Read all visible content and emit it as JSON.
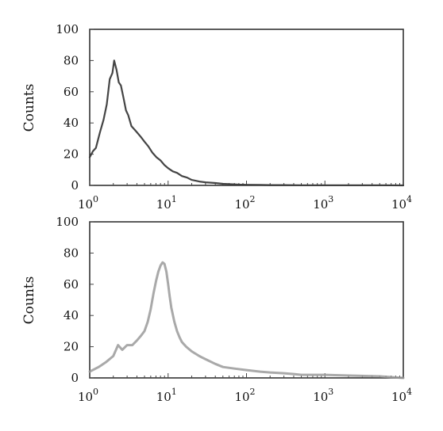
{
  "chart_data": [
    {
      "type": "line",
      "subtype": "flow-cytometry-histogram",
      "title": "",
      "xlabel": "",
      "ylabel": "Counts",
      "xscale": "log",
      "xlim": [
        1,
        10000
      ],
      "ylim": [
        0,
        100
      ],
      "yticks": [
        "0",
        "20",
        "40",
        "60",
        "80",
        "100"
      ],
      "xticks": [
        {
          "base": "10",
          "exp": "0"
        },
        {
          "base": "10",
          "exp": "1"
        },
        {
          "base": "10",
          "exp": "2"
        },
        {
          "base": "10",
          "exp": "3"
        },
        {
          "base": "10",
          "exp": "4"
        }
      ],
      "grid": false,
      "legend": "none",
      "series": [
        {
          "color": "#3a3a3a",
          "x": [
            1.0,
            1.1,
            1.2,
            1.35,
            1.5,
            1.65,
            1.8,
            1.95,
            2.05,
            2.2,
            2.35,
            2.5,
            2.7,
            2.9,
            3.1,
            3.4,
            3.7,
            4.0,
            4.5,
            5.0,
            5.6,
            6.3,
            7.1,
            8.0,
            9.0,
            10,
            11.5,
            13,
            15,
            17.5,
            20,
            25,
            30,
            40,
            50,
            60,
            80,
            100,
            150,
            200,
            300,
            500,
            1000,
            2000,
            5000,
            10000
          ],
          "y": [
            18,
            22,
            24,
            34,
            42,
            52,
            68,
            72,
            80,
            74,
            66,
            64,
            56,
            48,
            45,
            38,
            36,
            34,
            31,
            28,
            25,
            21,
            18,
            16,
            13,
            11,
            9,
            8,
            6,
            5,
            3.5,
            2.5,
            2,
            1.5,
            1,
            0.8,
            0.5,
            0.4,
            0.3,
            0.2,
            0.2,
            0.1,
            0.1,
            0.1,
            0.1,
            0
          ]
        }
      ]
    },
    {
      "type": "line",
      "subtype": "flow-cytometry-histogram",
      "title": "",
      "xlabel": "",
      "ylabel": "Counts",
      "xscale": "log",
      "xlim": [
        1,
        10000
      ],
      "ylim": [
        0,
        100
      ],
      "yticks": [
        "0",
        "20",
        "40",
        "60",
        "80",
        "100"
      ],
      "xticks": [
        {
          "base": "10",
          "exp": "0"
        },
        {
          "base": "10",
          "exp": "1"
        },
        {
          "base": "10",
          "exp": "2"
        },
        {
          "base": "10",
          "exp": "3"
        },
        {
          "base": "10",
          "exp": "4"
        }
      ],
      "grid": false,
      "legend": "none",
      "series": [
        {
          "color": "#9a9a9a",
          "x": [
            1.0,
            1.3,
            1.6,
            2.0,
            2.3,
            2.6,
            3.0,
            3.5,
            4.0,
            4.5,
            5.0,
            5.5,
            6.0,
            6.5,
            7.0,
            7.5,
            8.0,
            8.5,
            9.0,
            9.5,
            10,
            10.5,
            11,
            12,
            13,
            14,
            15,
            17,
            20,
            25,
            30,
            40,
            50,
            70,
            100,
            150,
            200,
            300,
            400,
            500,
            700,
            1000,
            2000,
            5000,
            10000
          ],
          "y": [
            4,
            7,
            10,
            14,
            21,
            18,
            21,
            21,
            24,
            27,
            30,
            36,
            44,
            54,
            62,
            68,
            72,
            74,
            73,
            68,
            60,
            52,
            45,
            36,
            30,
            26,
            23,
            20,
            17,
            14,
            12,
            9,
            7,
            6,
            5,
            4,
            3.5,
            3,
            2.5,
            2,
            2,
            2,
            1.5,
            1,
            0
          ]
        }
      ]
    }
  ]
}
